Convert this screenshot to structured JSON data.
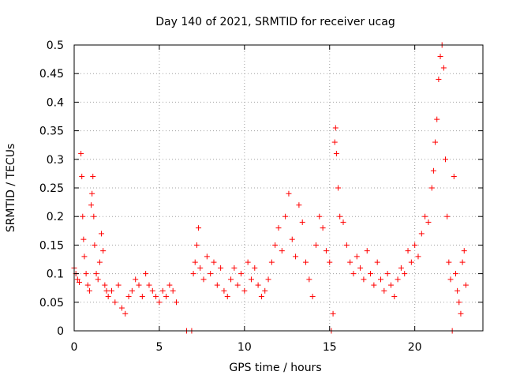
{
  "chart_data": {
    "type": "scatter",
    "title": "Day 140 of 2021, SRMTID for receiver ucag",
    "xlabel": "GPS time / hours",
    "ylabel": "SRMTID / TECUs",
    "xlim": [
      0,
      24
    ],
    "ylim": [
      0,
      0.5
    ],
    "xticks": [
      "0",
      "5",
      "10",
      "15",
      "20"
    ],
    "xtick_values": [
      0,
      5,
      10,
      15,
      20
    ],
    "yticks": [
      "0",
      "0.05",
      "0.1",
      "0.15",
      "0.2",
      "0.25",
      "0.3",
      "0.35",
      "0.4",
      "0.45",
      "0.5"
    ],
    "ytick_values": [
      0,
      0.05,
      0.1,
      0.15,
      0.2,
      0.25,
      0.3,
      0.35,
      0.4,
      0.45,
      0.5
    ],
    "grid": true,
    "marker": "+",
    "color": "#ff0000",
    "series": [
      {
        "name": "SRMTID",
        "points": [
          [
            0.0,
            0.11
          ],
          [
            0.1,
            0.1
          ],
          [
            0.2,
            0.09
          ],
          [
            0.3,
            0.085
          ],
          [
            0.4,
            0.31
          ],
          [
            0.45,
            0.27
          ],
          [
            0.5,
            0.2
          ],
          [
            0.55,
            0.16
          ],
          [
            0.6,
            0.13
          ],
          [
            0.7,
            0.1
          ],
          [
            0.8,
            0.08
          ],
          [
            0.9,
            0.07
          ],
          [
            1.0,
            0.22
          ],
          [
            1.05,
            0.24
          ],
          [
            1.1,
            0.27
          ],
          [
            1.15,
            0.2
          ],
          [
            1.2,
            0.15
          ],
          [
            1.3,
            0.1
          ],
          [
            1.4,
            0.09
          ],
          [
            1.5,
            0.12
          ],
          [
            1.6,
            0.17
          ],
          [
            1.7,
            0.14
          ],
          [
            1.8,
            0.08
          ],
          [
            1.9,
            0.07
          ],
          [
            2.0,
            0.06
          ],
          [
            2.2,
            0.07
          ],
          [
            2.4,
            0.05
          ],
          [
            2.6,
            0.08
          ],
          [
            2.8,
            0.04
          ],
          [
            3.0,
            0.03
          ],
          [
            3.2,
            0.06
          ],
          [
            3.4,
            0.07
          ],
          [
            3.6,
            0.09
          ],
          [
            3.8,
            0.08
          ],
          [
            4.0,
            0.06
          ],
          [
            4.2,
            0.1
          ],
          [
            4.4,
            0.08
          ],
          [
            4.6,
            0.07
          ],
          [
            4.8,
            0.06
          ],
          [
            5.0,
            0.05
          ],
          [
            5.2,
            0.07
          ],
          [
            5.4,
            0.06
          ],
          [
            5.6,
            0.08
          ],
          [
            5.8,
            0.07
          ],
          [
            6.0,
            0.05
          ],
          [
            6.6,
            0.0
          ],
          [
            6.9,
            0.0
          ],
          [
            7.0,
            0.1
          ],
          [
            7.1,
            0.12
          ],
          [
            7.2,
            0.15
          ],
          [
            7.3,
            0.18
          ],
          [
            7.4,
            0.11
          ],
          [
            7.6,
            0.09
          ],
          [
            7.8,
            0.13
          ],
          [
            8.0,
            0.1
          ],
          [
            8.2,
            0.12
          ],
          [
            8.4,
            0.08
          ],
          [
            8.6,
            0.11
          ],
          [
            8.8,
            0.07
          ],
          [
            9.0,
            0.06
          ],
          [
            9.2,
            0.09
          ],
          [
            9.4,
            0.11
          ],
          [
            9.6,
            0.08
          ],
          [
            9.8,
            0.1
          ],
          [
            10.0,
            0.07
          ],
          [
            10.2,
            0.12
          ],
          [
            10.4,
            0.09
          ],
          [
            10.6,
            0.11
          ],
          [
            10.8,
            0.08
          ],
          [
            11.0,
            0.06
          ],
          [
            11.2,
            0.07
          ],
          [
            11.4,
            0.09
          ],
          [
            11.6,
            0.12
          ],
          [
            11.8,
            0.15
          ],
          [
            12.0,
            0.18
          ],
          [
            12.2,
            0.14
          ],
          [
            12.4,
            0.2
          ],
          [
            12.6,
            0.24
          ],
          [
            12.8,
            0.16
          ],
          [
            13.0,
            0.13
          ],
          [
            13.2,
            0.22
          ],
          [
            13.4,
            0.19
          ],
          [
            13.6,
            0.12
          ],
          [
            13.8,
            0.09
          ],
          [
            14.0,
            0.06
          ],
          [
            14.2,
            0.15
          ],
          [
            14.4,
            0.2
          ],
          [
            14.6,
            0.18
          ],
          [
            14.8,
            0.14
          ],
          [
            15.0,
            0.12
          ],
          [
            15.1,
            0.0
          ],
          [
            15.2,
            0.03
          ],
          [
            15.3,
            0.33
          ],
          [
            15.35,
            0.355
          ],
          [
            15.4,
            0.31
          ],
          [
            15.5,
            0.25
          ],
          [
            15.6,
            0.2
          ],
          [
            15.8,
            0.19
          ],
          [
            16.0,
            0.15
          ],
          [
            16.2,
            0.12
          ],
          [
            16.4,
            0.1
          ],
          [
            16.6,
            0.13
          ],
          [
            16.8,
            0.11
          ],
          [
            17.0,
            0.09
          ],
          [
            17.2,
            0.14
          ],
          [
            17.4,
            0.1
          ],
          [
            17.6,
            0.08
          ],
          [
            17.8,
            0.12
          ],
          [
            18.0,
            0.09
          ],
          [
            18.2,
            0.07
          ],
          [
            18.4,
            0.1
          ],
          [
            18.6,
            0.08
          ],
          [
            18.8,
            0.06
          ],
          [
            19.0,
            0.09
          ],
          [
            19.2,
            0.11
          ],
          [
            19.4,
            0.1
          ],
          [
            19.6,
            0.14
          ],
          [
            19.8,
            0.12
          ],
          [
            20.0,
            0.15
          ],
          [
            20.2,
            0.13
          ],
          [
            20.4,
            0.17
          ],
          [
            20.6,
            0.2
          ],
          [
            20.8,
            0.19
          ],
          [
            21.0,
            0.25
          ],
          [
            21.1,
            0.28
          ],
          [
            21.2,
            0.33
          ],
          [
            21.3,
            0.37
          ],
          [
            21.4,
            0.44
          ],
          [
            21.5,
            0.48
          ],
          [
            21.6,
            0.5
          ],
          [
            21.7,
            0.46
          ],
          [
            21.8,
            0.3
          ],
          [
            21.9,
            0.2
          ],
          [
            22.0,
            0.12
          ],
          [
            22.1,
            0.09
          ],
          [
            22.2,
            0.0
          ],
          [
            22.3,
            0.27
          ],
          [
            22.4,
            0.1
          ],
          [
            22.5,
            0.07
          ],
          [
            22.6,
            0.05
          ],
          [
            22.7,
            0.03
          ],
          [
            22.8,
            0.12
          ],
          [
            22.9,
            0.14
          ],
          [
            23.0,
            0.08
          ]
        ]
      }
    ]
  }
}
